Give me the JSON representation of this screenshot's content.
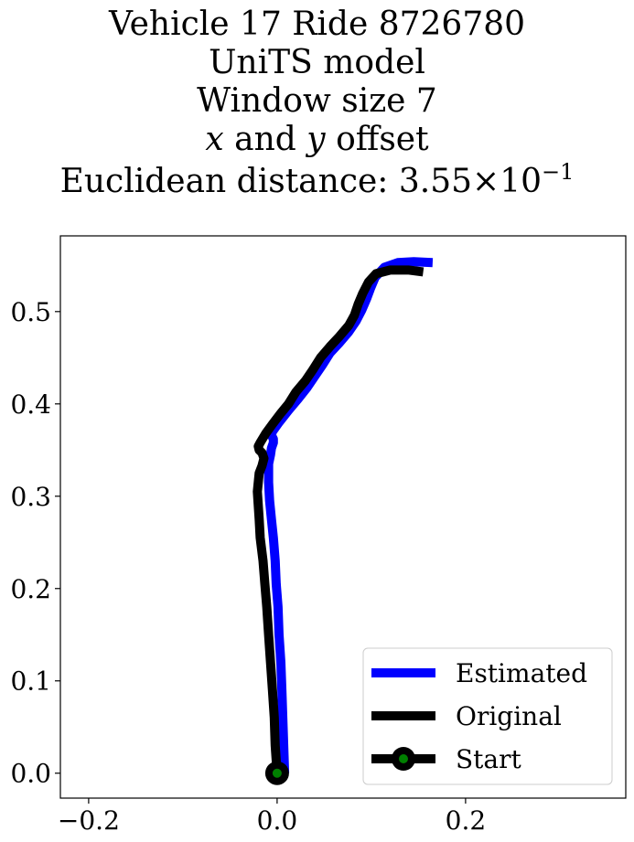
{
  "chart_data": {
    "type": "line",
    "title_lines": [
      "Vehicle 17 Ride 8726780",
      "UniTS model",
      "Window size 7"
    ],
    "title_offset": {
      "x_var": "x",
      "mid": " and ",
      "y_var": "y",
      "suffix": " offset"
    },
    "title_distance": {
      "prefix": "Euclidean distance: ",
      "mantissa": "3.55",
      "times": "×",
      "base": "10",
      "exponent": "−1"
    },
    "xlabel": "",
    "ylabel": "",
    "xlim": [
      -0.23,
      0.37
    ],
    "ylim": [
      -0.027,
      0.582
    ],
    "xticks": [
      {
        "value": -0.2,
        "label": "−0.2"
      },
      {
        "value": 0.0,
        "label": "0.0"
      },
      {
        "value": 0.2,
        "label": "0.2"
      }
    ],
    "yticks": [
      {
        "value": 0.0,
        "label": "0.0"
      },
      {
        "value": 0.1,
        "label": "0.1"
      },
      {
        "value": 0.2,
        "label": "0.2"
      },
      {
        "value": 0.3,
        "label": "0.3"
      },
      {
        "value": 0.4,
        "label": "0.4"
      },
      {
        "value": 0.5,
        "label": "0.5"
      }
    ],
    "grid": false,
    "legend_position": "lower right",
    "series": [
      {
        "name": "Estimated",
        "color": "#0000ff",
        "x": [
          0.008,
          0.007,
          0.006,
          0.005,
          0.004,
          0.002,
          0.001,
          -0.001,
          -0.002,
          -0.004,
          -0.006,
          -0.008,
          -0.009,
          -0.009,
          -0.009,
          -0.007,
          -0.006,
          -0.004,
          -0.004,
          -0.006,
          -0.005,
          0.002,
          0.012,
          0.022,
          0.032,
          0.04,
          0.048,
          0.056,
          0.066,
          0.076,
          0.084,
          0.09,
          0.095,
          0.099,
          0.104,
          0.114,
          0.128,
          0.145,
          0.165
        ],
        "y": [
          0.0,
          0.03,
          0.06,
          0.09,
          0.12,
          0.15,
          0.18,
          0.205,
          0.23,
          0.255,
          0.275,
          0.295,
          0.315,
          0.325,
          0.335,
          0.345,
          0.352,
          0.358,
          0.362,
          0.366,
          0.37,
          0.38,
          0.393,
          0.405,
          0.418,
          0.43,
          0.442,
          0.455,
          0.466,
          0.478,
          0.49,
          0.502,
          0.514,
          0.525,
          0.537,
          0.548,
          0.553,
          0.554,
          0.553
        ]
      },
      {
        "name": "Original",
        "color": "#000000",
        "x": [
          0.0,
          -0.002,
          -0.003,
          -0.005,
          -0.007,
          -0.009,
          -0.011,
          -0.013,
          -0.015,
          -0.018,
          -0.019,
          -0.02,
          -0.021,
          -0.02,
          -0.019,
          -0.016,
          -0.014,
          -0.016,
          -0.019,
          -0.02,
          -0.018,
          -0.012,
          -0.005,
          0.004,
          0.012,
          0.02,
          0.03,
          0.038,
          0.046,
          0.056,
          0.066,
          0.076,
          0.082,
          0.086,
          0.091,
          0.097,
          0.105,
          0.12,
          0.14,
          0.155
        ],
        "y": [
          0.0,
          0.03,
          0.06,
          0.09,
          0.12,
          0.15,
          0.18,
          0.205,
          0.23,
          0.255,
          0.275,
          0.29,
          0.305,
          0.315,
          0.325,
          0.333,
          0.341,
          0.347,
          0.35,
          0.354,
          0.358,
          0.368,
          0.378,
          0.39,
          0.4,
          0.413,
          0.425,
          0.437,
          0.45,
          0.462,
          0.473,
          0.485,
          0.496,
          0.508,
          0.52,
          0.532,
          0.541,
          0.545,
          0.545,
          0.543
        ]
      }
    ],
    "start_point": {
      "name": "Start",
      "x": 0.0,
      "y": 0.0,
      "color": "#008000",
      "edge_color": "#000000"
    },
    "legend": [
      "Estimated",
      "Original",
      "Start"
    ]
  }
}
